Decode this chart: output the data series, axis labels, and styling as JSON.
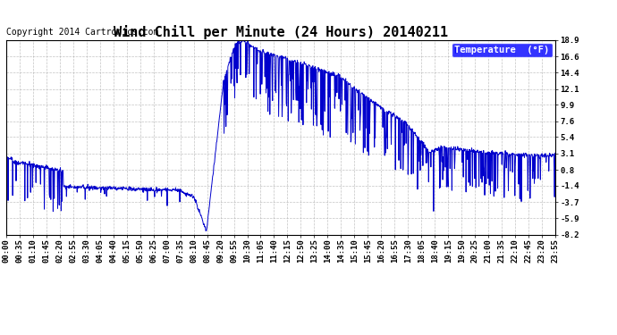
{
  "title": "Wind Chill per Minute (24 Hours) 20140211",
  "copyright": "Copyright 2014 Cartronics.com",
  "legend_label": "Temperature  (°F)",
  "background_color": "#ffffff",
  "plot_bg_color": "#ffffff",
  "grid_color": "#aaaaaa",
  "line_color": "#0000cc",
  "line_width": 0.7,
  "ylim": [
    -8.2,
    18.9
  ],
  "yticks": [
    -8.2,
    -5.9,
    -3.7,
    -1.4,
    0.8,
    3.1,
    5.4,
    7.6,
    9.9,
    12.1,
    14.4,
    16.6,
    18.9
  ],
  "xtick_labels": [
    "00:00",
    "00:35",
    "01:10",
    "01:45",
    "02:20",
    "02:55",
    "03:30",
    "04:05",
    "04:40",
    "05:15",
    "05:50",
    "06:25",
    "07:00",
    "07:35",
    "08:10",
    "08:45",
    "09:20",
    "09:55",
    "10:30",
    "11:05",
    "11:40",
    "12:15",
    "12:50",
    "13:25",
    "14:00",
    "14:35",
    "15:10",
    "15:45",
    "16:20",
    "16:55",
    "17:30",
    "18:05",
    "18:40",
    "19:15",
    "19:50",
    "20:25",
    "21:00",
    "21:35",
    "22:10",
    "22:45",
    "23:20",
    "23:55"
  ],
  "title_fontsize": 11,
  "copyright_fontsize": 7,
  "tick_fontsize": 6.5,
  "legend_fontsize": 7.5
}
